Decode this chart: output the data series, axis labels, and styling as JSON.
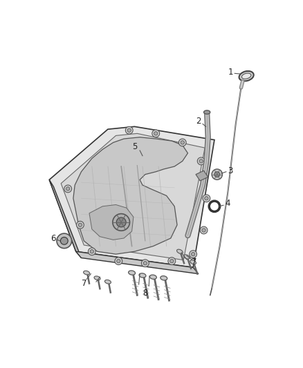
{
  "bg_color": "#ffffff",
  "fig_width": 4.38,
  "fig_height": 5.33,
  "dpi": 100,
  "line_color": "#444444",
  "light_gray": "#bbbbbb",
  "mid_gray": "#888888",
  "dark_gray": "#333333",
  "pan_face": "#e8e8e8",
  "pan_inner": "#d0d0d0",
  "pan_dark": "#b8b8b8",
  "pan_shadow": "#c0c0c0"
}
